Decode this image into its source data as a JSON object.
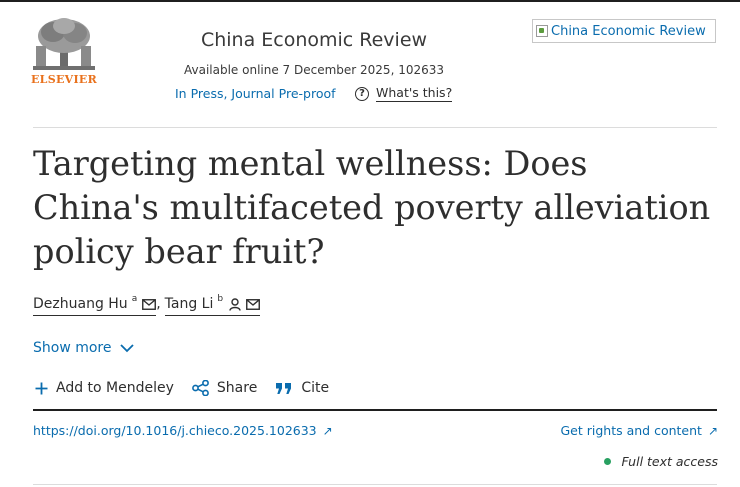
{
  "publisher": {
    "logo_text": "ELSEVIER",
    "brand_color": "#e9711c"
  },
  "journal": {
    "name": "China Economic Review",
    "availability": "Available online 7 December 2025, 102633",
    "status": "In Press, Journal Pre-proof",
    "whats_this": "What's this?",
    "cover_alt": "China Economic Review"
  },
  "article": {
    "title": "Targeting mental wellness: Does China's multifaceted poverty alleviation policy bear fruit?",
    "authors": [
      {
        "name": "Dezhuang Hu",
        "affiliation": "a",
        "icons": [
          "mail-icon"
        ]
      },
      {
        "name": "Tang Li",
        "affiliation": "b",
        "icons": [
          "person-icon",
          "mail-icon"
        ]
      }
    ],
    "author_separator": ",",
    "show_more": "Show more"
  },
  "actions": {
    "mendeley": "Add to Mendeley",
    "share": "Share",
    "cite": "Cite"
  },
  "links": {
    "doi": "https://doi.org/10.1016/j.chieco.2025.102633",
    "rights": "Get rights and content",
    "access": "Full text access"
  },
  "colors": {
    "link": "#0a6cae",
    "access_dot": "#29a061",
    "text": "#2e2e2e"
  }
}
